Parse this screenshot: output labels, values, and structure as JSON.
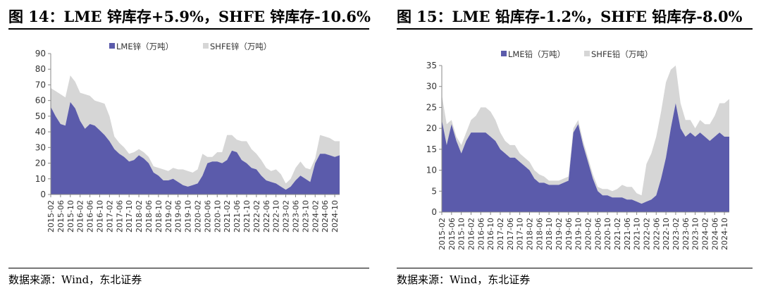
{
  "panels": [
    {
      "title": "图 14：LME 锌库存+5.9%，SHFE 锌库存-10.6%",
      "source": "数据来源：Wind，东北证券"
    },
    {
      "title": "图 15：LME 铅库存-1.2%，SHFE 铅库存-8.0%",
      "source": "数据来源：Wind，东北证券"
    }
  ],
  "chart_data": [
    {
      "type": "area",
      "stacked": true,
      "title": "图 14：LME 锌库存+5.9%，SHFE 锌库存-10.6%",
      "ylim": [
        0,
        90
      ],
      "yticks": [
        0,
        10,
        20,
        30,
        40,
        50,
        60,
        70,
        80,
        90
      ],
      "legend_position": "top",
      "x_ticks": [
        "2015-02",
        "2015-06",
        "2015-10",
        "2016-02",
        "2016-06",
        "2016-10",
        "2017-02",
        "2017-06",
        "2017-10",
        "2018-02",
        "2018-06",
        "2018-10",
        "2019-02",
        "2019-06",
        "2019-10",
        "2020-02",
        "2020-06",
        "2020-10",
        "2021-02",
        "2021-06",
        "2021-10",
        "2022-02",
        "2022-06",
        "2022-10",
        "2023-02",
        "2023-06",
        "2023-10",
        "2024-02",
        "2024-06",
        "2024-10"
      ],
      "x": [
        "2015-02",
        "2015-04",
        "2015-06",
        "2015-08",
        "2015-10",
        "2015-12",
        "2016-02",
        "2016-04",
        "2016-06",
        "2016-08",
        "2016-10",
        "2016-12",
        "2017-02",
        "2017-04",
        "2017-06",
        "2017-08",
        "2017-10",
        "2017-12",
        "2018-02",
        "2018-04",
        "2018-06",
        "2018-08",
        "2018-10",
        "2018-12",
        "2019-02",
        "2019-04",
        "2019-06",
        "2019-08",
        "2019-10",
        "2019-12",
        "2020-02",
        "2020-04",
        "2020-06",
        "2020-08",
        "2020-10",
        "2020-12",
        "2021-02",
        "2021-04",
        "2021-06",
        "2021-08",
        "2021-10",
        "2021-12",
        "2022-02",
        "2022-04",
        "2022-06",
        "2022-08",
        "2022-10",
        "2022-12",
        "2023-02",
        "2023-04",
        "2023-06",
        "2023-08",
        "2023-10",
        "2023-12",
        "2024-02",
        "2024-04",
        "2024-06",
        "2024-08",
        "2024-10",
        "2024-12"
      ],
      "series": [
        {
          "name": "LME锌（万吨）",
          "color": "#5b5bab",
          "values": [
            56,
            50,
            45,
            44,
            59,
            55,
            47,
            42,
            45,
            44,
            41,
            38,
            34,
            29,
            26,
            24,
            21,
            22,
            25,
            23,
            20,
            14,
            12,
            9,
            9,
            10,
            8,
            6,
            5,
            6,
            7,
            12,
            20,
            21,
            21,
            20,
            22,
            28,
            27,
            22,
            20,
            17,
            16,
            12,
            9,
            8,
            7,
            5,
            3,
            5,
            9,
            12,
            10,
            8,
            20,
            26,
            26,
            25,
            24,
            25
          ],
          "ylabel": ""
        },
        {
          "name": "SHFE锌（万吨）",
          "color": "#d6d6d6",
          "values": [
            12,
            16,
            19,
            18,
            17,
            17,
            18,
            22,
            18,
            16,
            18,
            20,
            16,
            8,
            7,
            6,
            5,
            5,
            4,
            4,
            4,
            4,
            5,
            7,
            6,
            7,
            8,
            10,
            10,
            8,
            9,
            14,
            4,
            3,
            6,
            7,
            16,
            10,
            8,
            12,
            14,
            12,
            10,
            10,
            8,
            7,
            9,
            8,
            4,
            5,
            8,
            9,
            7,
            8,
            3,
            12,
            11,
            11,
            10,
            9
          ]
        }
      ]
    },
    {
      "type": "area",
      "stacked": true,
      "title": "图 15：LME 铅库存-1.2%，SHFE 铅库存-8.0%",
      "ylim": [
        0,
        35
      ],
      "yticks": [
        0,
        5,
        10,
        15,
        20,
        25,
        30,
        35
      ],
      "legend_position": "top",
      "x_ticks": [
        "2015-02",
        "2015-06",
        "2015-10",
        "2016-02",
        "2016-06",
        "2016-10",
        "2017-02",
        "2017-06",
        "2017-10",
        "2018-02",
        "2018-06",
        "2018-10",
        "2019-02",
        "2019-06",
        "2019-10",
        "2020-02",
        "2020-06",
        "2020-10",
        "2021-02",
        "2021-06",
        "2021-10",
        "2022-02",
        "2022-06",
        "2022-10",
        "2023-02",
        "2023-06",
        "2023-10",
        "2024-02",
        "2024-06",
        "2024-10"
      ],
      "x": [
        "2015-02",
        "2015-04",
        "2015-06",
        "2015-08",
        "2015-10",
        "2015-12",
        "2016-02",
        "2016-04",
        "2016-06",
        "2016-08",
        "2016-10",
        "2016-12",
        "2017-02",
        "2017-04",
        "2017-06",
        "2017-08",
        "2017-10",
        "2017-12",
        "2018-02",
        "2018-04",
        "2018-06",
        "2018-08",
        "2018-10",
        "2018-12",
        "2019-02",
        "2019-04",
        "2019-06",
        "2019-08",
        "2019-10",
        "2019-12",
        "2020-02",
        "2020-04",
        "2020-06",
        "2020-08",
        "2020-10",
        "2020-12",
        "2021-02",
        "2021-04",
        "2021-06",
        "2021-08",
        "2021-10",
        "2021-12",
        "2022-02",
        "2022-04",
        "2022-06",
        "2022-08",
        "2022-10",
        "2022-12",
        "2023-02",
        "2023-04",
        "2023-06",
        "2023-08",
        "2023-10",
        "2023-12",
        "2024-02",
        "2024-04",
        "2024-06",
        "2024-08",
        "2024-10",
        "2024-12"
      ],
      "series": [
        {
          "name": "LME铅（万吨）",
          "color": "#5b5bab",
          "values": [
            22,
            16,
            21,
            17,
            14,
            17,
            19,
            19,
            19,
            19,
            18,
            17,
            15,
            14,
            13,
            13,
            12,
            11,
            10,
            8,
            7,
            7,
            6.5,
            6.5,
            6.5,
            7,
            7.5,
            19,
            21,
            16,
            12,
            8,
            5,
            4,
            4,
            3.5,
            3.5,
            3.5,
            3,
            3,
            2.5,
            2,
            2.5,
            3,
            4,
            8,
            13,
            20,
            26,
            20,
            18,
            19,
            18,
            19,
            18,
            17,
            18,
            19,
            18,
            18
          ],
          "ylabel": ""
        },
        {
          "name": "SHFE铅（万吨）",
          "color": "#d6d6d6",
          "values": [
            6,
            5,
            1,
            1,
            2,
            2,
            3,
            4,
            6,
            6,
            6,
            5,
            4,
            3,
            3,
            3,
            2,
            2,
            2,
            2,
            2,
            1.5,
            1,
            1,
            1,
            1,
            1,
            1,
            1,
            1,
            1,
            1,
            1,
            1.5,
            1.5,
            1.5,
            2,
            3,
            3,
            3,
            2,
            2,
            9,
            11,
            14,
            16,
            18,
            14,
            9,
            6,
            4,
            3,
            2,
            3,
            3,
            4,
            5,
            7,
            8,
            9
          ]
        }
      ]
    }
  ]
}
